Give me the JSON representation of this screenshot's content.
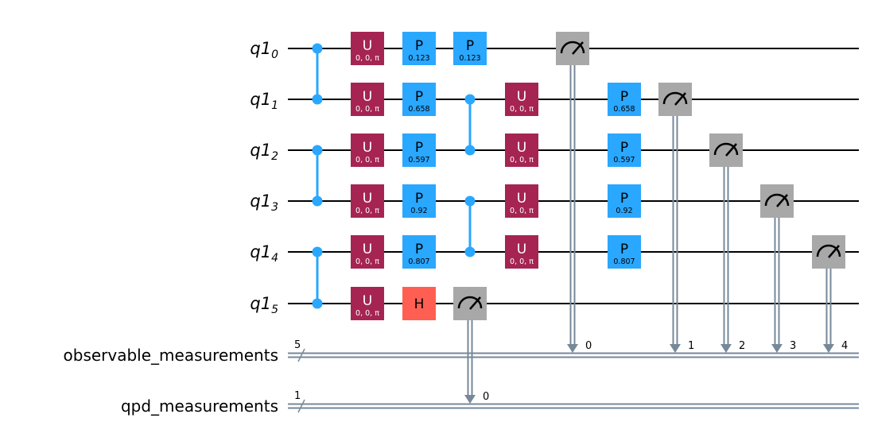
{
  "colors": {
    "U": "#A52452",
    "P": "#2AA7FF",
    "H": "#FF5F52",
    "measure": "#A8A8A8",
    "cz": "#2AA7FF",
    "qwire": "#000000",
    "cwire": "#778899"
  },
  "qubits": [
    {
      "name": "q1",
      "index": "0"
    },
    {
      "name": "q1",
      "index": "1"
    },
    {
      "name": "q1",
      "index": "2"
    },
    {
      "name": "q1",
      "index": "3"
    },
    {
      "name": "q1",
      "index": "4"
    },
    {
      "name": "q1",
      "index": "5"
    }
  ],
  "cregs": [
    {
      "name": "observable_measurements",
      "size": "5"
    },
    {
      "name": "qpd_measurements",
      "size": "1"
    }
  ],
  "gates": [
    {
      "type": "CZ",
      "qubits": [
        0,
        1
      ],
      "moment": 0
    },
    {
      "type": "CZ",
      "qubits": [
        2,
        3
      ],
      "moment": 0
    },
    {
      "type": "CZ",
      "qubits": [
        4,
        5
      ],
      "moment": 0
    },
    {
      "type": "U",
      "label": "U",
      "param": "0, 0, π",
      "qubit": 0,
      "moment": 1
    },
    {
      "type": "U",
      "label": "U",
      "param": "0, 0, π",
      "qubit": 1,
      "moment": 1
    },
    {
      "type": "U",
      "label": "U",
      "param": "0, 0, π",
      "qubit": 2,
      "moment": 1
    },
    {
      "type": "U",
      "label": "U",
      "param": "0, 0, π",
      "qubit": 3,
      "moment": 1
    },
    {
      "type": "U",
      "label": "U",
      "param": "0, 0, π",
      "qubit": 4,
      "moment": 1
    },
    {
      "type": "U",
      "label": "U",
      "param": "0, 0, π",
      "qubit": 5,
      "moment": 1
    },
    {
      "type": "P",
      "label": "P",
      "param": "0.123",
      "qubit": 0,
      "moment": 2
    },
    {
      "type": "P",
      "label": "P",
      "param": "0.658",
      "qubit": 1,
      "moment": 2
    },
    {
      "type": "P",
      "label": "P",
      "param": "0.597",
      "qubit": 2,
      "moment": 2
    },
    {
      "type": "P",
      "label": "P",
      "param": "0.92",
      "qubit": 3,
      "moment": 2
    },
    {
      "type": "P",
      "label": "P",
      "param": "0.807",
      "qubit": 4,
      "moment": 2
    },
    {
      "type": "H",
      "label": "H",
      "param": "",
      "qubit": 5,
      "moment": 2
    },
    {
      "type": "P",
      "label": "P",
      "param": "0.123",
      "qubit": 0,
      "moment": 3
    },
    {
      "type": "CZ",
      "qubits": [
        1,
        2
      ],
      "moment": 3
    },
    {
      "type": "CZ",
      "qubits": [
        3,
        4
      ],
      "moment": 3
    },
    {
      "type": "M",
      "qubit": 5,
      "creg": 1,
      "bit": "0",
      "moment": 3
    },
    {
      "type": "U",
      "label": "U",
      "param": "0, 0, π",
      "qubit": 1,
      "moment": 4
    },
    {
      "type": "U",
      "label": "U",
      "param": "0, 0, π",
      "qubit": 2,
      "moment": 4
    },
    {
      "type": "U",
      "label": "U",
      "param": "0, 0, π",
      "qubit": 3,
      "moment": 4
    },
    {
      "type": "U",
      "label": "U",
      "param": "0, 0, π",
      "qubit": 4,
      "moment": 4
    },
    {
      "type": "M",
      "qubit": 0,
      "creg": 0,
      "bit": "0",
      "moment": 5
    },
    {
      "type": "P",
      "label": "P",
      "param": "0.658",
      "qubit": 1,
      "moment": 6
    },
    {
      "type": "P",
      "label": "P",
      "param": "0.597",
      "qubit": 2,
      "moment": 6
    },
    {
      "type": "P",
      "label": "P",
      "param": "0.92",
      "qubit": 3,
      "moment": 6
    },
    {
      "type": "P",
      "label": "P",
      "param": "0.807",
      "qubit": 4,
      "moment": 6
    },
    {
      "type": "M",
      "qubit": 1,
      "creg": 0,
      "bit": "1",
      "moment": 7
    },
    {
      "type": "M",
      "qubit": 2,
      "creg": 0,
      "bit": "2",
      "moment": 8
    },
    {
      "type": "M",
      "qubit": 3,
      "creg": 0,
      "bit": "3",
      "moment": 9
    },
    {
      "type": "M",
      "qubit": 4,
      "creg": 0,
      "bit": "4",
      "moment": 10
    }
  ]
}
